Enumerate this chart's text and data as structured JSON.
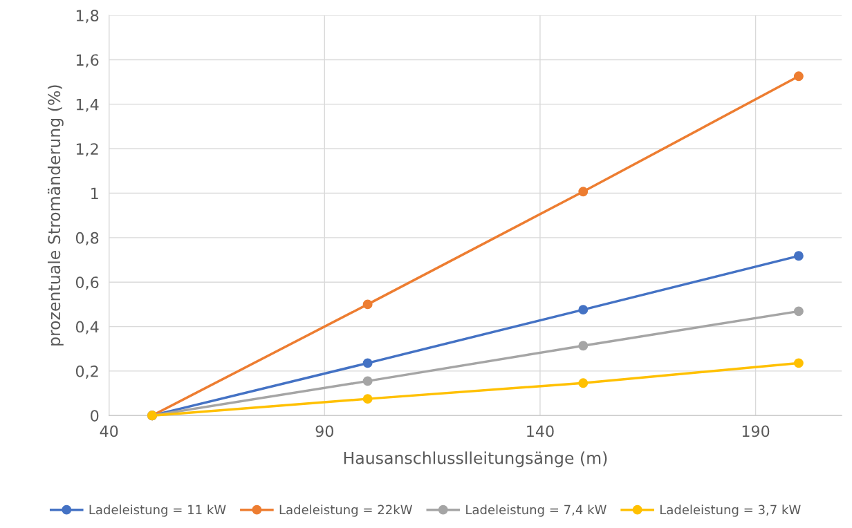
{
  "chart_data": {
    "type": "line",
    "xlabel": "Hausanschlusslleitungsänge (m)",
    "ylabel": "prozentuale Stromänderung (%)",
    "x": [
      50,
      100,
      150,
      200
    ],
    "series": [
      {
        "name": "Ladeleistung = 11 kW",
        "color": "#4472c4",
        "values": [
          0,
          0.236,
          0.476,
          0.718
        ]
      },
      {
        "name": "Ladeleistung = 22kW",
        "color": "#ed7d31",
        "values": [
          0,
          0.5,
          1.007,
          1.526
        ]
      },
      {
        "name": "Ladeleistung = 7,4 kW",
        "color": "#a5a5a5",
        "values": [
          0,
          0.155,
          0.314,
          0.469
        ]
      },
      {
        "name": "Ladeleistung = 3,7 kW",
        "color": "#ffc000",
        "values": [
          0,
          0.075,
          0.146,
          0.236
        ]
      }
    ],
    "xlim": [
      40,
      210
    ],
    "xticks": [
      40,
      90,
      140,
      190
    ],
    "ylim": [
      0,
      1.8
    ],
    "yticks": [
      0,
      {
        "value": 0.2,
        "label": "0,2"
      },
      {
        "value": 0.4,
        "label": "0,4"
      },
      {
        "value": 0.6,
        "label": "0,6"
      },
      {
        "value": 0.8,
        "label": "0,8"
      },
      1,
      {
        "value": 1.2,
        "label": "1,2"
      },
      {
        "value": 1.4,
        "label": "1,4"
      },
      {
        "value": 1.6,
        "label": "1,6"
      },
      {
        "value": 1.8,
        "label": "1,8"
      }
    ],
    "grid": true,
    "legend": "bottom",
    "marker": "circle",
    "line_style": "solid"
  }
}
